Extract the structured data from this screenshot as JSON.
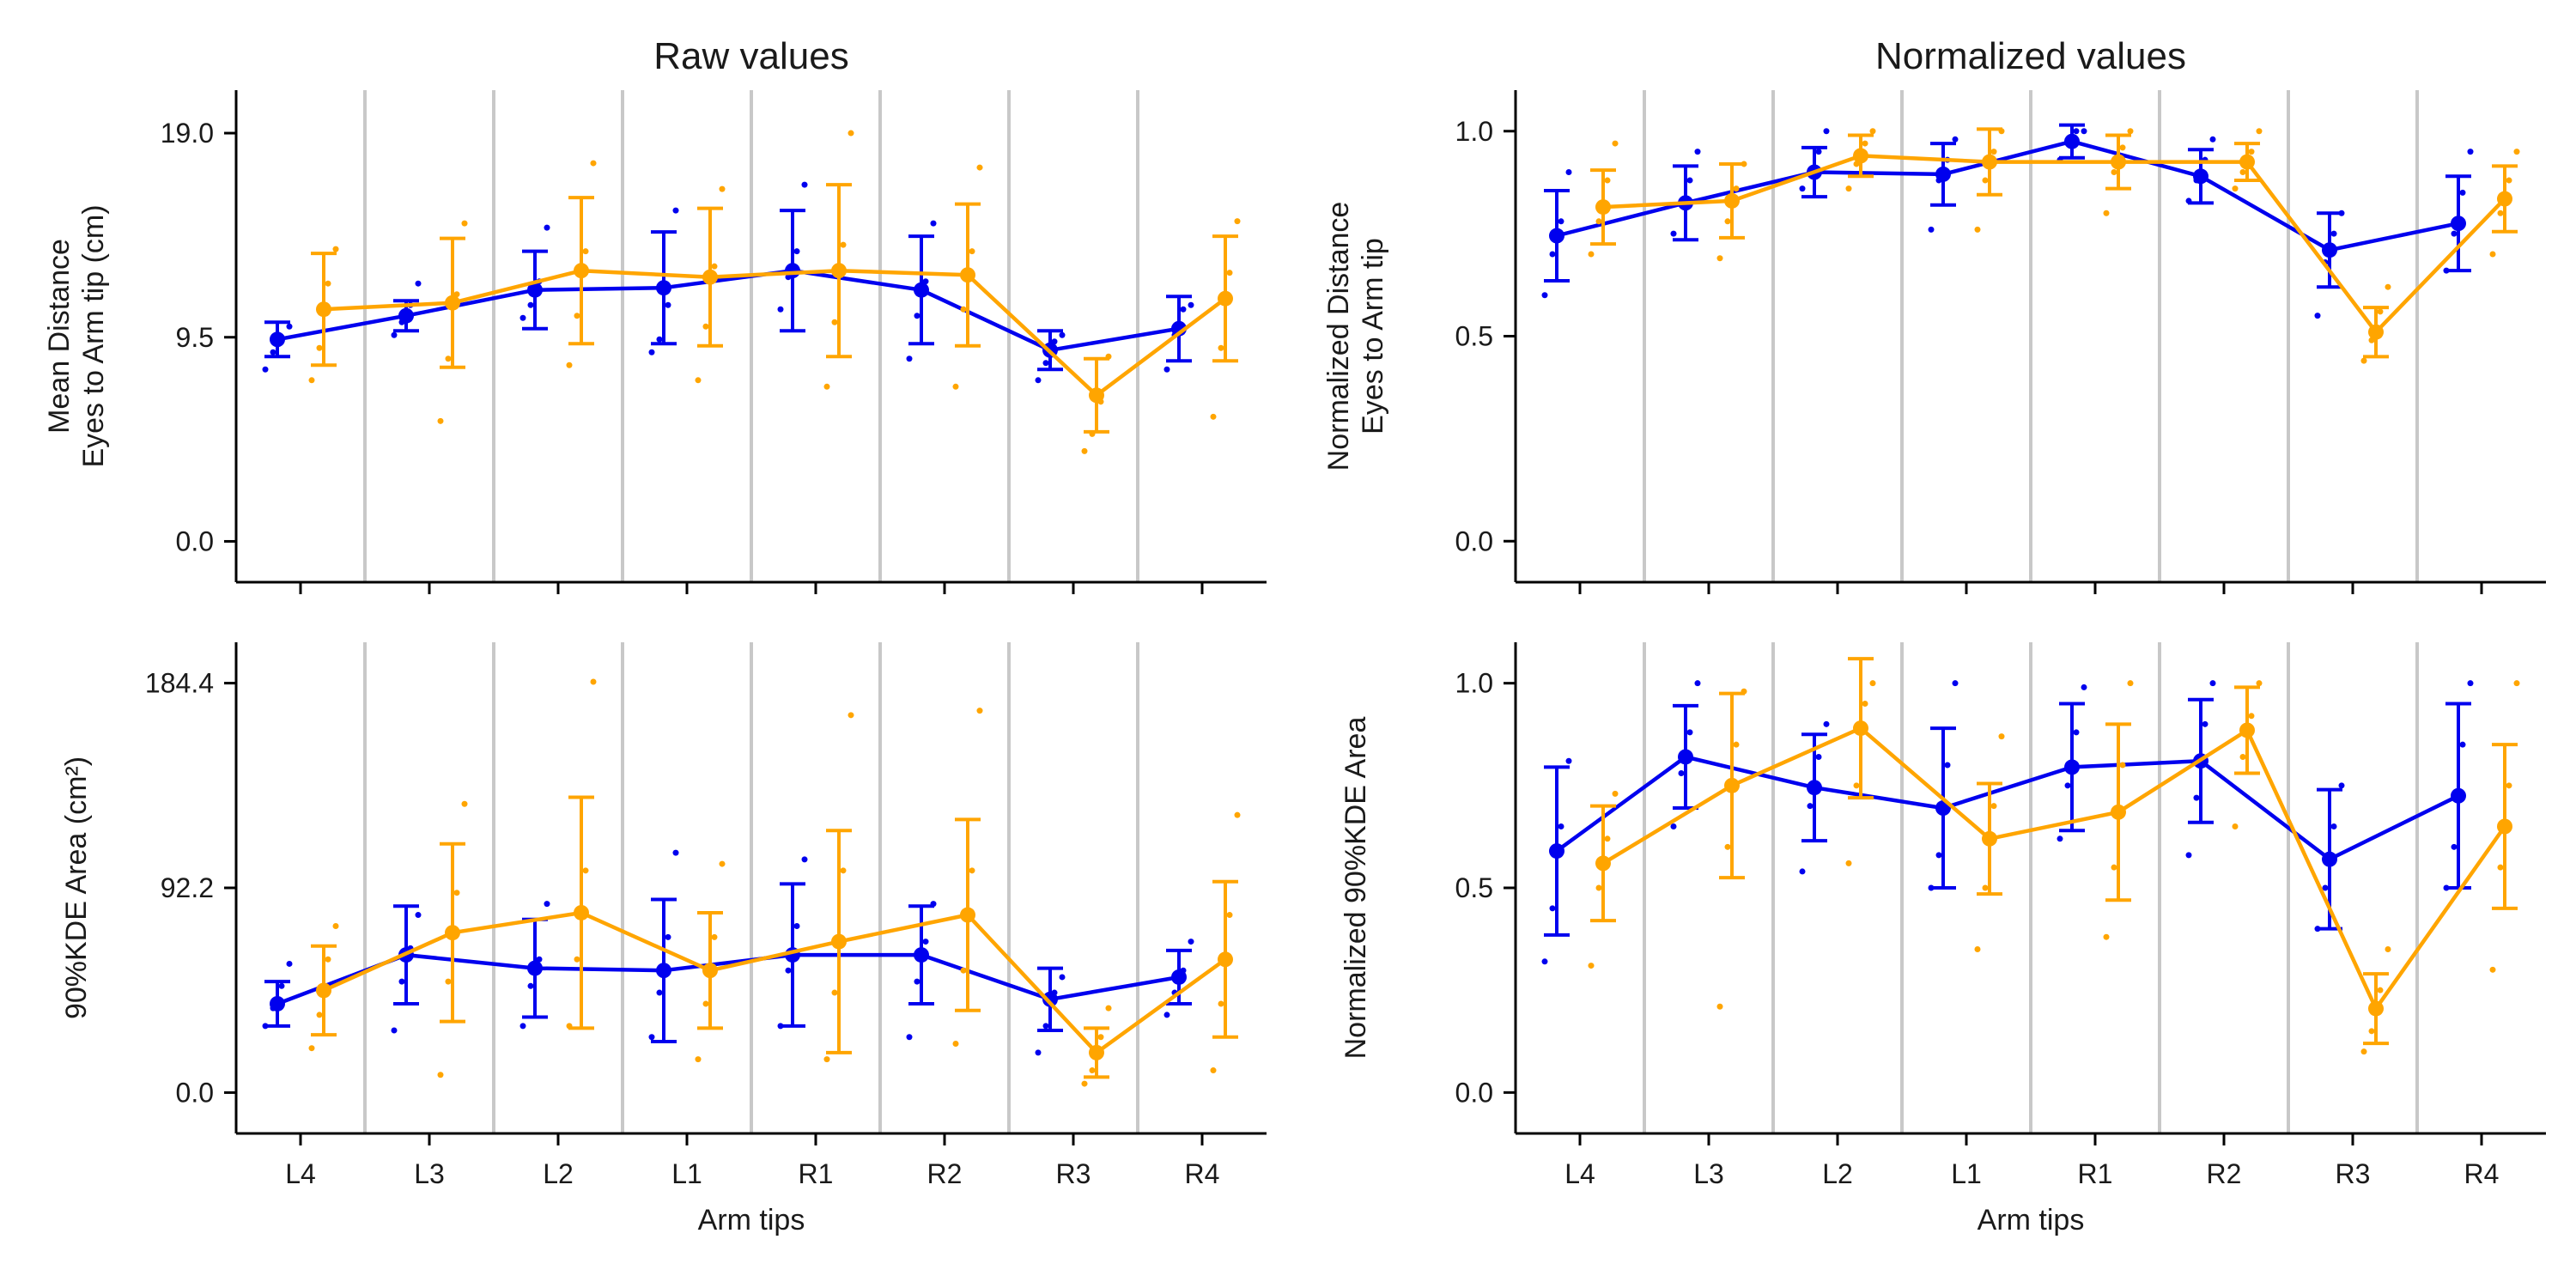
{
  "chart_data": [
    {
      "type": "line",
      "panel": "top-left",
      "title": "Raw values",
      "ylabel": [
        "Mean Distance",
        "Eyes to Arm tip (cm)"
      ],
      "xlabel": "",
      "categories": [
        "L4",
        "L3",
        "L2",
        "L1",
        "R1",
        "R2",
        "R3",
        "R4"
      ],
      "show_x_tick_labels": false,
      "ylim": [
        -1.9,
        21.0
      ],
      "yticks": [
        0.0,
        9.5,
        19.0
      ],
      "yticklabels": [
        "0.0",
        "9.5",
        "19.0"
      ],
      "grid": false,
      "series": [
        {
          "color": "#0000ee",
          "values": [
            9.4,
            10.5,
            11.7,
            11.8,
            12.6,
            11.7,
            8.9,
            9.9
          ],
          "err": [
            0.8,
            0.7,
            1.8,
            2.6,
            2.8,
            2.5,
            0.9,
            1.5
          ],
          "points": [
            [
              8.0,
              8.8,
              9.5,
              10.0
            ],
            [
              9.6,
              10.2,
              11.0,
              12.0
            ],
            [
              10.4,
              11.0,
              12.1,
              14.6
            ],
            [
              8.8,
              9.4,
              11.0,
              15.4
            ],
            [
              10.8,
              12.3,
              13.5,
              16.6
            ],
            [
              8.5,
              10.5,
              12.1,
              14.8
            ],
            [
              7.5,
              8.3,
              9.3,
              9.6
            ],
            [
              8.0,
              9.6,
              10.8,
              11.0
            ]
          ]
        },
        {
          "color": "#ffa500",
          "values": [
            10.8,
            11.1,
            12.6,
            12.3,
            12.6,
            12.4,
            6.8,
            11.3
          ],
          "err": [
            2.6,
            3.0,
            3.4,
            3.2,
            4.0,
            3.3,
            1.7,
            2.9
          ],
          "points": [
            [
              7.5,
              9.0,
              12.0,
              13.6
            ],
            [
              5.6,
              8.5,
              11.5,
              14.8
            ],
            [
              8.2,
              10.5,
              13.5,
              17.6
            ],
            [
              7.5,
              10.0,
              12.8,
              16.4
            ],
            [
              7.2,
              10.2,
              13.8,
              19.0
            ],
            [
              7.2,
              10.8,
              13.5,
              17.4
            ],
            [
              4.2,
              5.0,
              6.5,
              8.6
            ],
            [
              5.8,
              9.0,
              12.5,
              14.9
            ]
          ]
        }
      ]
    },
    {
      "type": "line",
      "panel": "top-right",
      "title": "Normalized values",
      "ylabel": [
        "Normalized Distance",
        "Eyes to Arm tip"
      ],
      "xlabel": "",
      "categories": [
        "L4",
        "L3",
        "L2",
        "L1",
        "R1",
        "R2",
        "R3",
        "R4"
      ],
      "show_x_tick_labels": false,
      "ylim": [
        -0.1,
        1.1
      ],
      "yticks": [
        0.0,
        0.5,
        1.0
      ],
      "yticklabels": [
        "0.0",
        "0.5",
        "1.0"
      ],
      "grid": false,
      "series": [
        {
          "color": "#0000ee",
          "values": [
            0.745,
            0.825,
            0.9,
            0.895,
            0.975,
            0.89,
            0.71,
            0.775
          ],
          "err": [
            0.11,
            0.09,
            0.06,
            0.075,
            0.04,
            0.065,
            0.09,
            0.115
          ],
          "points": [
            [
              0.6,
              0.7,
              0.78,
              0.9
            ],
            [
              0.75,
              0.82,
              0.88,
              0.95
            ],
            [
              0.86,
              0.9,
              0.95,
              1.0
            ],
            [
              0.76,
              0.88,
              0.93,
              0.98
            ],
            [
              0.93,
              0.97,
              1.0,
              1.0
            ],
            [
              0.83,
              0.88,
              0.93,
              0.98
            ],
            [
              0.55,
              0.68,
              0.75,
              0.8
            ],
            [
              0.66,
              0.75,
              0.85,
              0.95
            ]
          ]
        },
        {
          "color": "#ffa500",
          "values": [
            0.815,
            0.83,
            0.94,
            0.925,
            0.925,
            0.925,
            0.51,
            0.835
          ],
          "err": [
            0.09,
            0.09,
            0.05,
            0.08,
            0.065,
            0.045,
            0.06,
            0.08
          ],
          "points": [
            [
              0.7,
              0.78,
              0.88,
              0.97
            ],
            [
              0.69,
              0.78,
              0.86,
              0.92
            ],
            [
              0.86,
              0.92,
              0.97,
              1.0
            ],
            [
              0.76,
              0.88,
              0.95,
              1.0
            ],
            [
              0.8,
              0.9,
              0.96,
              1.0
            ],
            [
              0.86,
              0.9,
              0.95,
              1.0
            ],
            [
              0.44,
              0.49,
              0.56,
              0.62
            ],
            [
              0.7,
              0.8,
              0.88,
              0.95
            ]
          ]
        }
      ]
    },
    {
      "type": "line",
      "panel": "bottom-left",
      "title": "",
      "ylabel": [
        "90%KDE Area (cm²)"
      ],
      "xlabel": "Arm tips",
      "categories": [
        "L4",
        "L3",
        "L2",
        "L1",
        "R1",
        "R2",
        "R3",
        "R4"
      ],
      "show_x_tick_labels": true,
      "ylim": [
        -18.4,
        202.8
      ],
      "yticks": [
        0.0,
        92.2,
        184.4
      ],
      "yticklabels": [
        "0.0",
        "92.2",
        "184.4"
      ],
      "grid": false,
      "series": [
        {
          "color": "#0000ee",
          "values": [
            40,
            62,
            56,
            55,
            62,
            62,
            42,
            52
          ],
          "err": [
            10,
            22,
            22,
            32,
            32,
            22,
            14,
            12
          ],
          "points": [
            [
              30,
              38,
              48,
              58
            ],
            [
              28,
              50,
              65,
              80
            ],
            [
              30,
              48,
              60,
              85
            ],
            [
              25,
              45,
              70,
              108
            ],
            [
              30,
              55,
              75,
              105
            ],
            [
              25,
              50,
              68,
              85
            ],
            [
              18,
              30,
              45,
              52
            ],
            [
              35,
              45,
              55,
              68
            ]
          ]
        },
        {
          "color": "#ffa500",
          "values": [
            46,
            72,
            81,
            55,
            68,
            80,
            18,
            60
          ],
          "err": [
            20,
            40,
            52,
            26,
            50,
            43,
            11,
            35
          ],
          "points": [
            [
              20,
              35,
              60,
              75
            ],
            [
              8,
              50,
              90,
              130
            ],
            [
              30,
              60,
              100,
              185
            ],
            [
              15,
              40,
              70,
              103
            ],
            [
              15,
              45,
              100,
              170
            ],
            [
              22,
              55,
              100,
              172
            ],
            [
              4,
              10,
              25,
              38
            ],
            [
              10,
              40,
              80,
              125
            ]
          ]
        }
      ]
    },
    {
      "type": "line",
      "panel": "bottom-right",
      "title": "",
      "ylabel": [
        "Normalized 90%KDE Area"
      ],
      "xlabel": "Arm tips",
      "categories": [
        "L4",
        "L3",
        "L2",
        "L1",
        "R1",
        "R2",
        "R3",
        "R4"
      ],
      "show_x_tick_labels": true,
      "ylim": [
        -0.1,
        1.1
      ],
      "yticks": [
        0.0,
        0.5,
        1.0
      ],
      "yticklabels": [
        "0.0",
        "0.5",
        "1.0"
      ],
      "grid": false,
      "series": [
        {
          "color": "#0000ee",
          "values": [
            0.59,
            0.82,
            0.745,
            0.695,
            0.795,
            0.81,
            0.57,
            0.725
          ],
          "err": [
            0.205,
            0.125,
            0.13,
            0.195,
            0.155,
            0.15,
            0.17,
            0.225
          ],
          "points": [
            [
              0.32,
              0.45,
              0.65,
              0.81
            ],
            [
              0.65,
              0.78,
              0.88,
              1.0
            ],
            [
              0.54,
              0.7,
              0.82,
              0.9
            ],
            [
              0.5,
              0.58,
              0.8,
              1.0
            ],
            [
              0.62,
              0.75,
              0.88,
              0.99
            ],
            [
              0.58,
              0.72,
              0.9,
              1.0
            ],
            [
              0.4,
              0.5,
              0.65,
              0.75
            ],
            [
              0.5,
              0.6,
              0.85,
              1.0
            ]
          ]
        },
        {
          "color": "#ffa500",
          "values": [
            0.56,
            0.75,
            0.89,
            0.62,
            0.685,
            0.885,
            0.205,
            0.65
          ],
          "err": [
            0.14,
            0.225,
            0.17,
            0.135,
            0.215,
            0.105,
            0.085,
            0.2
          ],
          "points": [
            [
              0.31,
              0.5,
              0.62,
              0.73
            ],
            [
              0.21,
              0.6,
              0.85,
              0.98
            ],
            [
              0.56,
              0.75,
              0.95,
              1.0
            ],
            [
              0.35,
              0.5,
              0.7,
              0.87
            ],
            [
              0.38,
              0.55,
              0.8,
              1.0
            ],
            [
              0.65,
              0.82,
              0.92,
              1.0
            ],
            [
              0.1,
              0.15,
              0.25,
              0.35
            ],
            [
              0.3,
              0.55,
              0.75,
              1.0
            ]
          ]
        }
      ]
    }
  ]
}
